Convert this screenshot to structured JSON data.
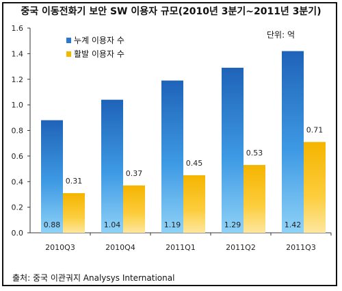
{
  "chart_data": {
    "type": "bar",
    "title": "중국 이동전화기 보안 SW 이용자 규모(2010년 3분기~2011년 3분기)",
    "unit_label": "단위: 억",
    "categories": [
      "2010Q3",
      "2010Q4",
      "2011Q1",
      "2011Q2",
      "2011Q3"
    ],
    "series": [
      {
        "name": "누계 이용자 수",
        "values": [
          0.88,
          1.04,
          1.19,
          1.29,
          1.42
        ],
        "labels": [
          "0.88",
          "1.04",
          "1.19",
          "1.29",
          "1.42"
        ],
        "color": "#2a78d0"
      },
      {
        "name": "활발 이용자 수",
        "values": [
          0.31,
          0.37,
          0.45,
          0.53,
          0.71
        ],
        "labels": [
          "0.31",
          "0.37",
          "0.45",
          "0.53",
          "0.71"
        ],
        "color": "#f5b800"
      }
    ],
    "ylim": [
      0,
      1.6
    ],
    "yticks": [
      "0.0",
      "0.2",
      "0.4",
      "0.6",
      "0.8",
      "1.0",
      "1.2",
      "1.4",
      "1.6"
    ],
    "grid": false,
    "legend": "top-left"
  },
  "source": "출처: 중국 이관궈지  Analysys International"
}
